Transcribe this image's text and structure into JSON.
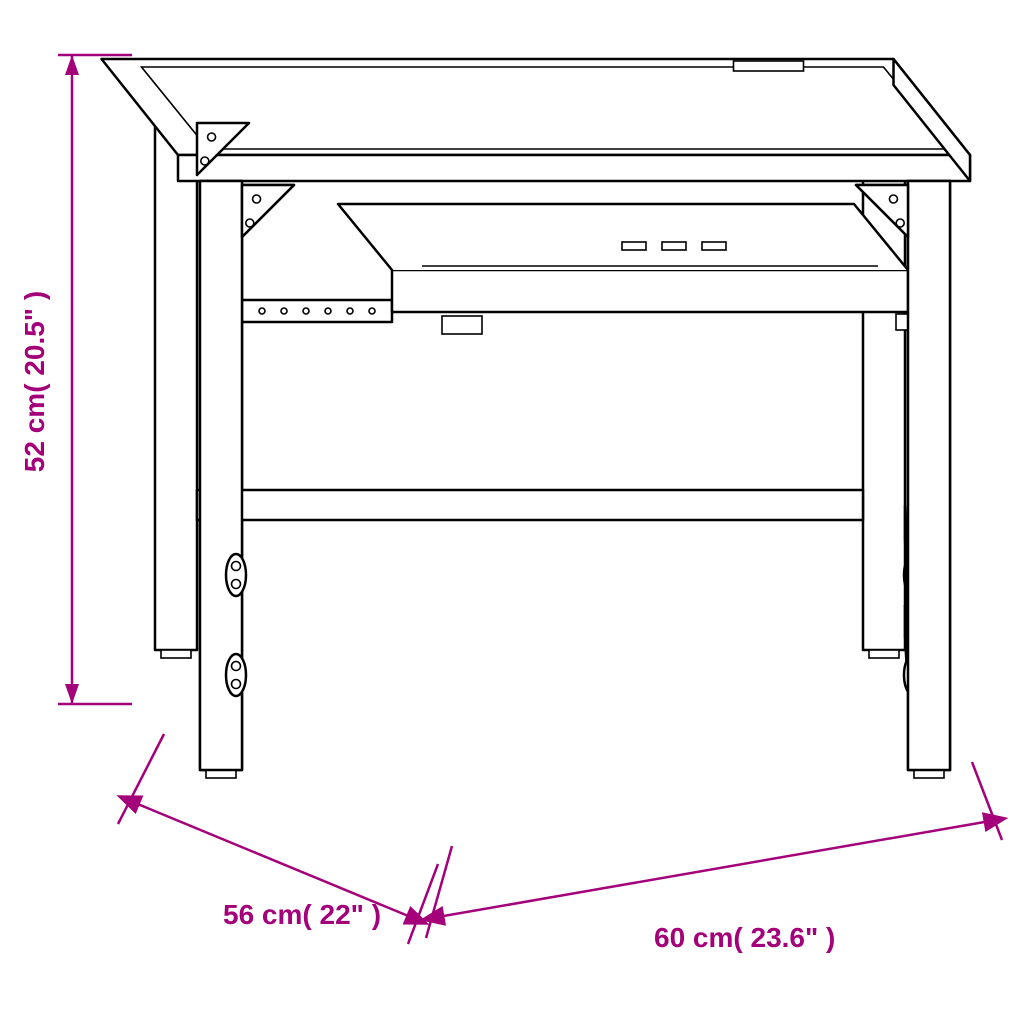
{
  "diagram": {
    "type": "technical-drawing",
    "accent_color": "#a3007a",
    "line_color": "#000000",
    "background_color": "#ffffff",
    "dimensions": {
      "height": {
        "value_cm": 52,
        "value_in": 20.5,
        "label": "52 cm( 20.5\" )"
      },
      "depth": {
        "value_cm": 56,
        "value_in": 22,
        "label": "56 cm( 22\" )"
      },
      "width": {
        "value_cm": 60,
        "value_in": 23.6,
        "label": "60 cm( 23.6\" )"
      }
    },
    "label_fontsize_pt": 21
  }
}
